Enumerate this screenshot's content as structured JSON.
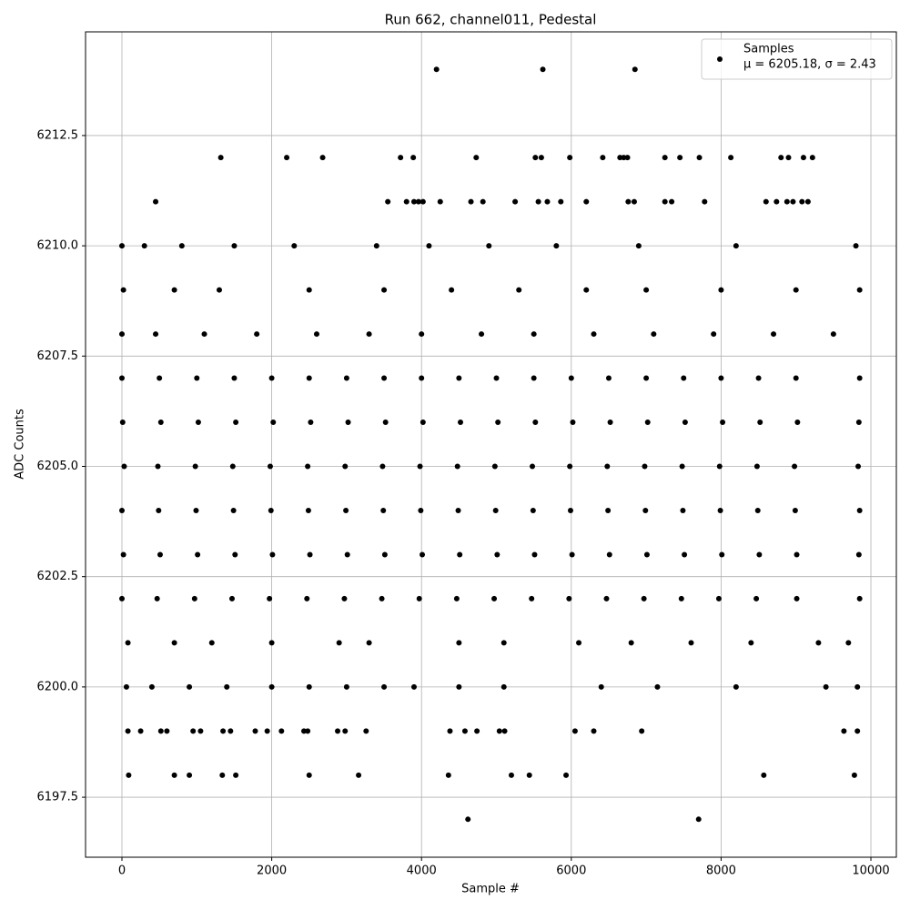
{
  "chart_data": {
    "type": "scatter",
    "title": "Run 662, channel011, Pedestal",
    "xlabel": "Sample #",
    "ylabel": "ADC Counts",
    "legend_label": "Samples",
    "annotation": "μ = 6205.18, σ = 2.43",
    "legend": "upper right",
    "color": "#000000",
    "grid": true,
    "xlim": [
      -486,
      10340
    ],
    "ylim": [
      6196.14,
      6214.85
    ],
    "xticks": [
      0,
      2000,
      4000,
      6000,
      8000,
      10000
    ],
    "yticks": [
      6197.5,
      {
        "value": 6200,
        "label": "6200.0"
      },
      6202.5,
      {
        "value": 6205,
        "label": "6205.0"
      },
      6207.5,
      {
        "value": 6210,
        "label": "6210.0"
      },
      6212.5
    ],
    "x": [
      4200,
      5620,
      6850,
      1320,
      2200,
      2680,
      3720,
      3890,
      4730,
      5520,
      5600,
      5980,
      6420,
      6650,
      6700,
      6750,
      7250,
      7450,
      7710,
      8130,
      8800,
      8900,
      9100,
      9220,
      450,
      3550,
      3800,
      3900,
      3960,
      4020,
      4250,
      4660,
      4820,
      5250,
      5560,
      5680,
      5860,
      6200,
      6760,
      6840,
      7250,
      7340,
      7780,
      8600,
      8740,
      8880,
      8960,
      9080,
      9160,
      0,
      300,
      800,
      1500,
      2300,
      3400,
      4100,
      4900,
      5800,
      6900,
      8200,
      9800,
      20,
      700,
      1300,
      2500,
      3500,
      4400,
      5300,
      6200,
      7000,
      8000,
      9000,
      9850,
      0,
      450,
      1100,
      1800,
      2600,
      3300,
      4000,
      4800,
      5500,
      6300,
      7100,
      7900,
      8700,
      9500,
      0,
      500,
      1000,
      1500,
      2000,
      2500,
      3000,
      3500,
      4000,
      4500,
      5000,
      5500,
      6000,
      6500,
      7000,
      7500,
      8000,
      8500,
      9000,
      9850,
      10,
      520,
      1020,
      1520,
      2020,
      2520,
      3020,
      3520,
      4020,
      4520,
      5020,
      5520,
      6020,
      6520,
      7020,
      7520,
      8020,
      8520,
      9020,
      9840,
      30,
      480,
      980,
      1480,
      1980,
      2480,
      2980,
      3480,
      3980,
      4480,
      4980,
      5480,
      5980,
      6480,
      6980,
      7480,
      7980,
      8480,
      8980,
      9830,
      0,
      490,
      990,
      1490,
      1990,
      2490,
      2990,
      3490,
      3990,
      4490,
      4990,
      5490,
      5990,
      6490,
      6990,
      7490,
      7990,
      8490,
      8990,
      9850,
      20,
      510,
      1010,
      1510,
      2010,
      2510,
      3010,
      3510,
      4010,
      4510,
      5010,
      5510,
      6010,
      6510,
      7010,
      7510,
      8010,
      8510,
      9010,
      9840,
      0,
      470,
      970,
      1470,
      1970,
      2470,
      2970,
      3470,
      3970,
      4470,
      4970,
      5470,
      5970,
      6470,
      6970,
      7470,
      7970,
      8470,
      9010,
      9850,
      80,
      700,
      1200,
      2000,
      2900,
      3300,
      4500,
      5100,
      6100,
      6800,
      7600,
      8400,
      9300,
      9700,
      60,
      400,
      900,
      1400,
      2000,
      2500,
      3000,
      3500,
      3900,
      4500,
      5100,
      6400,
      7150,
      8200,
      9400,
      9820,
      80,
      250,
      520,
      600,
      950,
      1050,
      1350,
      1450,
      1780,
      1940,
      2130,
      2430,
      2480,
      2880,
      2980,
      3260,
      4380,
      4580,
      4740,
      5040,
      5110,
      6050,
      6300,
      6940,
      9640,
      9820,
      90,
      700,
      900,
      1340,
      1520,
      2500,
      3160,
      4360,
      5200,
      5440,
      5930,
      8570,
      9780,
      4620,
      7700
    ],
    "y": [
      6214,
      6214,
      6214,
      6212,
      6212,
      6212,
      6212,
      6212,
      6212,
      6212,
      6212,
      6212,
      6212,
      6212,
      6212,
      6212,
      6212,
      6212,
      6212,
      6212,
      6212,
      6212,
      6212,
      6212,
      6211,
      6211,
      6211,
      6211,
      6211,
      6211,
      6211,
      6211,
      6211,
      6211,
      6211,
      6211,
      6211,
      6211,
      6211,
      6211,
      6211,
      6211,
      6211,
      6211,
      6211,
      6211,
      6211,
      6211,
      6211,
      6210,
      6210,
      6210,
      6210,
      6210,
      6210,
      6210,
      6210,
      6210,
      6210,
      6210,
      6210,
      6209,
      6209,
      6209,
      6209,
      6209,
      6209,
      6209,
      6209,
      6209,
      6209,
      6209,
      6209,
      6208,
      6208,
      6208,
      6208,
      6208,
      6208,
      6208,
      6208,
      6208,
      6208,
      6208,
      6208,
      6208,
      6208,
      6207,
      6207,
      6207,
      6207,
      6207,
      6207,
      6207,
      6207,
      6207,
      6207,
      6207,
      6207,
      6207,
      6207,
      6207,
      6207,
      6207,
      6207,
      6207,
      6207,
      6206,
      6206,
      6206,
      6206,
      6206,
      6206,
      6206,
      6206,
      6206,
      6206,
      6206,
      6206,
      6206,
      6206,
      6206,
      6206,
      6206,
      6206,
      6206,
      6206,
      6205,
      6205,
      6205,
      6205,
      6205,
      6205,
      6205,
      6205,
      6205,
      6205,
      6205,
      6205,
      6205,
      6205,
      6205,
      6205,
      6205,
      6205,
      6205,
      6205,
      6204,
      6204,
      6204,
      6204,
      6204,
      6204,
      6204,
      6204,
      6204,
      6204,
      6204,
      6204,
      6204,
      6204,
      6204,
      6204,
      6204,
      6204,
      6204,
      6204,
      6203,
      6203,
      6203,
      6203,
      6203,
      6203,
      6203,
      6203,
      6203,
      6203,
      6203,
      6203,
      6203,
      6203,
      6203,
      6203,
      6203,
      6203,
      6203,
      6203,
      6202,
      6202,
      6202,
      6202,
      6202,
      6202,
      6202,
      6202,
      6202,
      6202,
      6202,
      6202,
      6202,
      6202,
      6202,
      6202,
      6202,
      6202,
      6202,
      6202,
      6201,
      6201,
      6201,
      6201,
      6201,
      6201,
      6201,
      6201,
      6201,
      6201,
      6201,
      6201,
      6201,
      6201,
      6200,
      6200,
      6200,
      6200,
      6200,
      6200,
      6200,
      6200,
      6200,
      6200,
      6200,
      6200,
      6200,
      6200,
      6200,
      6200,
      6199,
      6199,
      6199,
      6199,
      6199,
      6199,
      6199,
      6199,
      6199,
      6199,
      6199,
      6199,
      6199,
      6199,
      6199,
      6199,
      6199,
      6199,
      6199,
      6199,
      6199,
      6199,
      6199,
      6199,
      6199,
      6199,
      6198,
      6198,
      6198,
      6198,
      6198,
      6198,
      6198,
      6198,
      6198,
      6198,
      6198,
      6198,
      6198,
      6197,
      6197
    ]
  }
}
